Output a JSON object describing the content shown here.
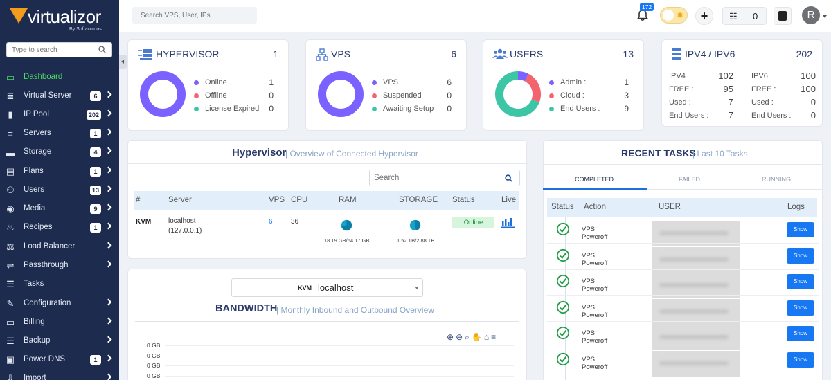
{
  "brand": {
    "name": "virtualizor",
    "sub": "By Softaculous"
  },
  "sidebar": {
    "search_placeholder": "Type to search",
    "items": [
      {
        "label": "Dashboard",
        "icon": "monitor-icon",
        "badge": null,
        "arrow": false,
        "active": true
      },
      {
        "label": "Virtual Server",
        "icon": "server-stack-icon",
        "badge": "6",
        "arrow": true
      },
      {
        "label": "IP Pool",
        "icon": "ip-icon",
        "badge": "202",
        "arrow": true
      },
      {
        "label": "Servers",
        "icon": "servers-icon",
        "badge": "1",
        "arrow": true
      },
      {
        "label": "Storage",
        "icon": "storage-icon",
        "badge": "4",
        "arrow": true
      },
      {
        "label": "Plans",
        "icon": "clipboard-icon",
        "badge": "1",
        "arrow": true
      },
      {
        "label": "Users",
        "icon": "users-icon",
        "badge": "13",
        "arrow": true
      },
      {
        "label": "Media",
        "icon": "disc-icon",
        "badge": "9",
        "arrow": true
      },
      {
        "label": "Recipes",
        "icon": "cooking-pot-icon",
        "badge": "1",
        "arrow": true
      },
      {
        "label": "Load Balancer",
        "icon": "balance-scale-icon",
        "badge": null,
        "arrow": true
      },
      {
        "label": "Passthrough",
        "icon": "usb-icon",
        "badge": null,
        "arrow": true
      },
      {
        "label": "Tasks",
        "icon": "list-icon",
        "badge": null,
        "arrow": false
      },
      {
        "label": "Configuration",
        "icon": "wrench-icon",
        "badge": null,
        "arrow": true
      },
      {
        "label": "Billing",
        "icon": "credit-card-icon",
        "badge": null,
        "arrow": true
      },
      {
        "label": "Backup",
        "icon": "database-icon",
        "badge": null,
        "arrow": true
      },
      {
        "label": "Power DNS",
        "icon": "dns-icon",
        "badge": "1",
        "arrow": true
      },
      {
        "label": "Import",
        "icon": "import-icon",
        "badge": null,
        "arrow": true
      }
    ]
  },
  "topbar": {
    "search_placeholder": "Search VPS, User, IPs",
    "notifications_count": "172",
    "tasks_count": "0",
    "avatar_letter": "R"
  },
  "cards": {
    "hypervisor": {
      "title": "HYPERVISOR",
      "value": "1",
      "legend": [
        {
          "label": "Online",
          "value": "1",
          "color": "#7b61ff"
        },
        {
          "label": "Offline",
          "value": "0",
          "color": "#f4646f"
        },
        {
          "label": "License Expired",
          "value": "0",
          "color": "#3cc6a6"
        }
      ],
      "chart": [
        1,
        0,
        0
      ]
    },
    "vps": {
      "title": "VPS",
      "value": "6",
      "legend": [
        {
          "label": "VPS",
          "value": "6",
          "color": "#7b61ff"
        },
        {
          "label": "Suspended",
          "value": "0",
          "color": "#f4646f"
        },
        {
          "label": "Awaiting Setup",
          "value": "0",
          "color": "#3cc6a6"
        }
      ],
      "chart": [
        6,
        0,
        0
      ]
    },
    "users": {
      "title": "USERS",
      "value": "13",
      "legend": [
        {
          "label": "Admin :",
          "value": "1",
          "color": "#7b61ff"
        },
        {
          "label": "Cloud :",
          "value": "3",
          "color": "#f4646f"
        },
        {
          "label": "End Users :",
          "value": "9",
          "color": "#3cc6a6"
        }
      ],
      "chart": [
        1,
        3,
        9
      ]
    },
    "ip": {
      "title": "IPV4 / IPV6",
      "value": "202",
      "ipv4": [
        {
          "label": "IPV4",
          "value": "102"
        },
        {
          "label": "FREE :",
          "value": "95"
        },
        {
          "label": "Used :",
          "value": "7"
        },
        {
          "label": "End Users :",
          "value": "7"
        }
      ],
      "ipv6": [
        {
          "label": "IPV6",
          "value": "100"
        },
        {
          "label": "FREE :",
          "value": "100"
        },
        {
          "label": "Used :",
          "value": "0"
        },
        {
          "label": "End Users :",
          "value": "0"
        }
      ]
    }
  },
  "hypervisor_panel": {
    "title": "Hypervisor",
    "subtitle": "| Overview of Connected Hypervisor",
    "search_placeholder": "Search",
    "columns": [
      "#",
      "Server",
      "VPS",
      "CPU",
      "RAM",
      "STORAGE",
      "Status",
      "Live"
    ],
    "row": {
      "type": "KVM",
      "server": "localhost",
      "ip": "(127.0.0.1)",
      "vps": "6",
      "cpu": "36",
      "ram": "18.19 GB/64.17 GB",
      "ram_used_fraction": 0.28,
      "storage": "1.52 TB/2.88 TB",
      "storage_used_fraction": 0.53,
      "status": "Online"
    }
  },
  "bandwidth": {
    "select_prefix": "KVM",
    "select_value": "localhost",
    "title": "BANDWIDTH",
    "subtitle": "| Monthly Inbound and Outbound Overview",
    "y_ticks": [
      "0 GB",
      "0 GB",
      "0 GB",
      "0 GB"
    ]
  },
  "recent_tasks": {
    "title": "RECENT TASKS",
    "subtitle": "| Last 10 Tasks",
    "tabs": [
      "COMPLETED",
      "FAILED",
      "RUNNING"
    ],
    "columns": [
      "Status",
      "Action",
      "USER",
      "Logs"
    ],
    "rows": [
      {
        "action": "VPS Poweroff",
        "logs": "Show"
      },
      {
        "action": "VPS Poweroff",
        "logs": "Show"
      },
      {
        "action": "VPS Poweroff",
        "logs": "Show"
      },
      {
        "action": "VPS Poweroff",
        "logs": "Show"
      },
      {
        "action": "VPS Poweroff",
        "logs": "Show"
      },
      {
        "action": "VPS Poweroff",
        "logs": "Show"
      }
    ]
  }
}
